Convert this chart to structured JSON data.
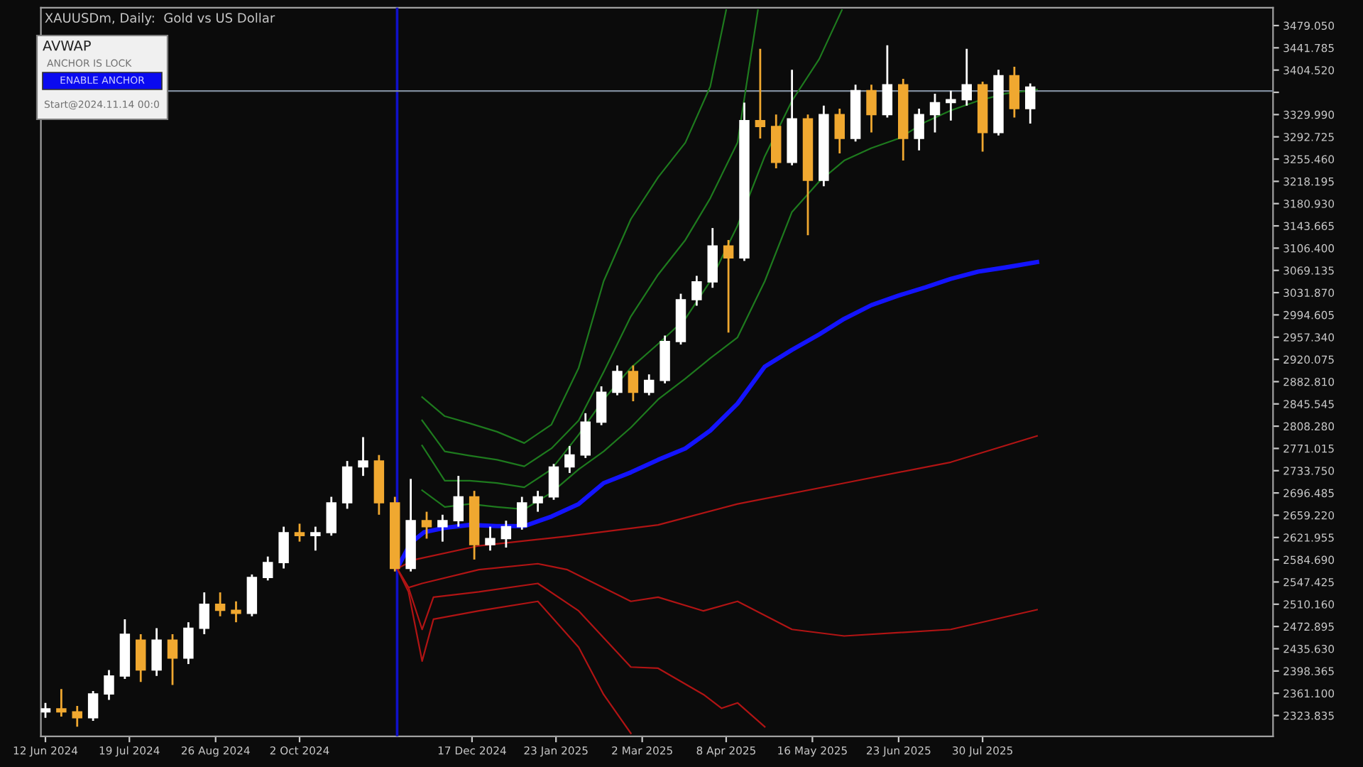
{
  "chart_data": {
    "type": "candlestick",
    "title": "XAUUSDm, Daily:  Gold vs US Dollar",
    "annotations": [
      "AVWAP",
      "ANCHOR IS LOCK",
      "ENABLE ANCHOR",
      "Start@2024.11.14 00:0"
    ],
    "x": [
      "2024-06-12",
      "2024-06-19",
      "2024-06-26",
      "2024-07-03",
      "2024-07-10",
      "2024-07-17",
      "2024-07-24",
      "2024-07-31",
      "2024-08-07",
      "2024-08-14",
      "2024-08-21",
      "2024-08-28",
      "2024-09-04",
      "2024-09-11",
      "2024-09-18",
      "2024-09-25",
      "2024-10-02",
      "2024-10-09",
      "2024-10-16",
      "2024-10-23",
      "2024-10-30",
      "2024-11-06",
      "2024-11-13",
      "2024-11-20",
      "2024-11-27",
      "2024-12-04",
      "2024-12-11",
      "2024-12-18",
      "2024-12-25",
      "2025-01-01",
      "2025-01-08",
      "2025-01-15",
      "2025-01-22",
      "2025-01-29",
      "2025-02-05",
      "2025-02-12",
      "2025-02-19",
      "2025-02-26",
      "2025-03-05",
      "2025-03-12",
      "2025-03-19",
      "2025-03-26",
      "2025-04-02",
      "2025-04-09",
      "2025-04-16",
      "2025-04-23",
      "2025-04-30",
      "2025-05-07",
      "2025-05-14",
      "2025-05-21",
      "2025-05-28",
      "2025-06-04",
      "2025-06-11",
      "2025-06-18",
      "2025-06-25",
      "2025-07-02",
      "2025-07-09",
      "2025-07-16",
      "2025-07-23",
      "2025-07-30",
      "2025-08-06",
      "2025-08-13",
      "2025-08-20"
    ],
    "ohlc": [
      [
        2330,
        2345,
        2320,
        2335
      ],
      [
        2335,
        2368,
        2322,
        2330
      ],
      [
        2330,
        2340,
        2305,
        2320
      ],
      [
        2320,
        2365,
        2315,
        2360
      ],
      [
        2360,
        2400,
        2350,
        2390
      ],
      [
        2390,
        2485,
        2385,
        2460
      ],
      [
        2450,
        2460,
        2380,
        2400
      ],
      [
        2400,
        2470,
        2390,
        2450
      ],
      [
        2450,
        2460,
        2375,
        2420
      ],
      [
        2420,
        2480,
        2410,
        2470
      ],
      [
        2470,
        2530,
        2460,
        2510
      ],
      [
        2510,
        2530,
        2490,
        2500
      ],
      [
        2500,
        2515,
        2480,
        2495
      ],
      [
        2495,
        2560,
        2490,
        2555
      ],
      [
        2555,
        2590,
        2550,
        2580
      ],
      [
        2580,
        2640,
        2570,
        2630
      ],
      [
        2630,
        2645,
        2615,
        2625
      ],
      [
        2625,
        2640,
        2600,
        2630
      ],
      [
        2630,
        2690,
        2625,
        2680
      ],
      [
        2680,
        2750,
        2670,
        2740
      ],
      [
        2740,
        2790,
        2725,
        2750
      ],
      [
        2750,
        2760,
        2660,
        2680
      ],
      [
        2680,
        2690,
        2565,
        2570
      ],
      [
        2570,
        2720,
        2565,
        2650
      ],
      [
        2650,
        2665,
        2620,
        2640
      ],
      [
        2640,
        2660,
        2615,
        2650
      ],
      [
        2650,
        2725,
        2640,
        2690
      ],
      [
        2690,
        2700,
        2585,
        2610
      ],
      [
        2610,
        2640,
        2600,
        2620
      ],
      [
        2620,
        2650,
        2605,
        2640
      ],
      [
        2640,
        2690,
        2635,
        2680
      ],
      [
        2680,
        2700,
        2665,
        2690
      ],
      [
        2690,
        2745,
        2685,
        2740
      ],
      [
        2740,
        2775,
        2730,
        2760
      ],
      [
        2760,
        2830,
        2755,
        2815
      ],
      [
        2815,
        2875,
        2810,
        2865
      ],
      [
        2865,
        2910,
        2860,
        2900
      ],
      [
        2900,
        2910,
        2850,
        2865
      ],
      [
        2865,
        2895,
        2860,
        2885
      ],
      [
        2885,
        2960,
        2880,
        2950
      ],
      [
        2950,
        3030,
        2945,
        3020
      ],
      [
        3020,
        3060,
        3010,
        3050
      ],
      [
        3050,
        3140,
        3040,
        3110
      ],
      [
        3110,
        3120,
        2965,
        3090
      ],
      [
        3090,
        3350,
        3085,
        3320
      ],
      [
        3320,
        3440,
        3290,
        3310
      ],
      [
        3310,
        3330,
        3240,
        3250
      ],
      [
        3250,
        3405,
        3245,
        3323
      ],
      [
        3323,
        3330,
        3128,
        3220
      ],
      [
        3220,
        3345,
        3210,
        3330
      ],
      [
        3330,
        3340,
        3265,
        3290
      ],
      [
        3290,
        3380,
        3285,
        3370
      ],
      [
        3370,
        3380,
        3300,
        3330
      ],
      [
        3330,
        3446,
        3325,
        3380
      ],
      [
        3380,
        3390,
        3253,
        3290
      ],
      [
        3290,
        3340,
        3270,
        3330
      ],
      [
        3330,
        3365,
        3300,
        3350
      ],
      [
        3350,
        3370,
        3320,
        3355
      ],
      [
        3355,
        3440,
        3345,
        3380
      ],
      [
        3380,
        3385,
        3268,
        3300
      ],
      [
        3300,
        3405,
        3295,
        3395
      ],
      [
        3395,
        3410,
        3325,
        3340
      ],
      [
        3340,
        3382,
        3315,
        3376
      ]
    ],
    "colors": [
      "#ffffff",
      "#f0a830",
      "#f0a830",
      "#ffffff",
      "#ffffff",
      "#ffffff",
      "#f0a830",
      "#ffffff",
      "#f0a830",
      "#ffffff",
      "#ffffff",
      "#f0a830",
      "#f0a830",
      "#ffffff",
      "#ffffff",
      "#ffffff",
      "#f0a830",
      "#ffffff",
      "#ffffff",
      "#ffffff",
      "#ffffff",
      "#f0a830",
      "#f0a830",
      "#ffffff",
      "#f0a830",
      "#ffffff",
      "#ffffff",
      "#f0a830",
      "#ffffff",
      "#ffffff",
      "#ffffff",
      "#ffffff",
      "#ffffff",
      "#ffffff",
      "#ffffff",
      "#ffffff",
      "#ffffff",
      "#f0a830",
      "#ffffff",
      "#ffffff",
      "#ffffff",
      "#ffffff",
      "#ffffff",
      "#f0a830",
      "#ffffff",
      "#f0a830",
      "#f0a830",
      "#ffffff",
      "#f0a830",
      "#ffffff",
      "#f0a830",
      "#ffffff",
      "#f0a830",
      "#ffffff",
      "#f0a830",
      "#ffffff",
      "#ffffff",
      "#ffffff",
      "#ffffff",
      "#f0a830",
      "#ffffff",
      "#f0a830",
      "#ffffff"
    ],
    "series": [
      {
        "type": "line",
        "color": "#1414ff",
        "x": [
          "2024-11-14",
          "2024-11-20",
          "2024-11-26",
          "2024-12-05",
          "2024-12-16",
          "2024-12-28",
          "2025-01-09",
          "2025-01-21",
          "2025-02-02",
          "2025-02-13",
          "2025-02-25",
          "2025-03-09",
          "2025-03-21",
          "2025-04-01",
          "2025-04-13",
          "2025-04-25",
          "2025-05-07",
          "2025-05-19",
          "2025-05-30",
          "2025-06-11",
          "2025-06-23",
          "2025-07-05",
          "2025-07-16",
          "2025-07-28",
          "2025-08-09",
          "2025-08-23"
        ],
        "values": [
          2570,
          2613,
          2631,
          2638,
          2643,
          2641,
          2641,
          2657,
          2678,
          2713,
          2731,
          2752,
          2771,
          2801,
          2846,
          2908,
          2936,
          2962,
          2988,
          3011,
          3027,
          3041,
          3055,
          3067,
          3074,
          3083
        ]
      },
      {
        "type": "line",
        "color": "#1e7a1e",
        "x": [
          "2024-11-25",
          "2024-12-05",
          "2024-12-16",
          "2024-12-28",
          "2025-01-09",
          "2025-01-21",
          "2025-02-02",
          "2025-02-13",
          "2025-02-25",
          "2025-03-09",
          "2025-03-21",
          "2025-04-01",
          "2025-04-13",
          "2025-04-25",
          "2025-05-07",
          "2025-05-19",
          "2025-05-30",
          "2025-06-11",
          "2025-06-23",
          "2025-07-05",
          "2025-07-16",
          "2025-07-28",
          "2025-08-09",
          "2025-08-23"
        ],
        "values": [
          2701,
          2673,
          2678,
          2673,
          2669,
          2697,
          2736,
          2766,
          2806,
          2853,
          2888,
          2922,
          2957,
          3051,
          3167,
          3218,
          3253,
          3274,
          3290,
          3318,
          3337,
          3353,
          3365,
          3372
        ]
      },
      {
        "type": "line",
        "color": "#1e7a1e",
        "x": [
          "2024-11-25",
          "2024-12-05",
          "2024-12-16",
          "2024-12-28",
          "2025-01-09",
          "2025-01-21",
          "2025-02-02",
          "2025-02-13",
          "2025-02-25",
          "2025-03-09",
          "2025-03-21",
          "2025-04-01",
          "2025-04-13",
          "2025-04-25",
          "2025-05-07",
          "2025-05-19",
          "2025-05-29"
        ],
        "values": [
          2776,
          2717,
          2717,
          2713,
          2706,
          2736,
          2794,
          2853,
          2906,
          2946,
          2988,
          3051,
          3144,
          3260,
          3353,
          3423,
          3505
        ]
      },
      {
        "type": "line",
        "color": "#1e7a1e",
        "x": [
          "2024-11-25",
          "2024-12-05",
          "2024-12-16",
          "2024-12-28",
          "2025-01-09",
          "2025-01-21",
          "2025-02-02",
          "2025-02-13",
          "2025-02-25",
          "2025-03-09",
          "2025-03-21",
          "2025-04-01",
          "2025-04-13",
          "2025-04-22"
        ],
        "values": [
          2818,
          2766,
          2759,
          2752,
          2741,
          2771,
          2818,
          2899,
          2992,
          3062,
          3120,
          3190,
          3283,
          3505
        ]
      },
      {
        "type": "line",
        "color": "#1e7a1e",
        "x": [
          "2024-11-25",
          "2024-12-05",
          "2024-12-16",
          "2024-12-28",
          "2025-01-09",
          "2025-01-21",
          "2025-02-02",
          "2025-02-13",
          "2025-02-25",
          "2025-03-09",
          "2025-03-21",
          "2025-04-01",
          "2025-04-08"
        ],
        "values": [
          2857,
          2825,
          2813,
          2799,
          2780,
          2811,
          2906,
          3051,
          3155,
          3225,
          3283,
          3377,
          3505
        ]
      },
      {
        "type": "line",
        "color": "#b01414",
        "x": [
          "2024-11-14",
          "2024-11-22",
          "2024-12-20",
          "2025-01-28",
          "2025-03-09",
          "2025-04-13",
          "2025-05-30",
          "2025-07-16",
          "2025-08-23"
        ],
        "values": [
          2570,
          2585,
          2608,
          2624,
          2643,
          2678,
          2713,
          2748,
          2792
        ]
      },
      {
        "type": "line",
        "color": "#b01414",
        "x": [
          "2024-11-14",
          "2024-11-19",
          "2024-11-25",
          "2024-12-20",
          "2025-01-15",
          "2025-01-28",
          "2025-02-25",
          "2025-03-09",
          "2025-03-29",
          "2025-04-13",
          "2025-05-07",
          "2025-05-30",
          "2025-07-16",
          "2025-08-23"
        ],
        "values": [
          2570,
          2538,
          2545,
          2568,
          2578,
          2568,
          2515,
          2522,
          2499,
          2515,
          2468,
          2457,
          2468,
          2501
        ]
      },
      {
        "type": "line",
        "color": "#b01414",
        "x": [
          "2024-11-14",
          "2024-11-19",
          "2024-11-25",
          "2024-11-30",
          "2024-12-20",
          "2025-01-15",
          "2025-02-02",
          "2025-02-25",
          "2025-03-09",
          "2025-03-29",
          "2025-04-06",
          "2025-04-13",
          "2025-04-25"
        ],
        "values": [
          2570,
          2538,
          2468,
          2522,
          2531,
          2545,
          2499,
          2405,
          2403,
          2359,
          2336,
          2345,
          2305
        ]
      },
      {
        "type": "line",
        "color": "#b01414",
        "x": [
          "2024-11-14",
          "2024-11-19",
          "2024-11-25",
          "2024-11-30",
          "2024-12-20",
          "2025-01-15",
          "2025-02-02",
          "2025-02-13",
          "2025-02-25"
        ],
        "values": [
          2570,
          2531,
          2415,
          2485,
          2499,
          2515,
          2438,
          2359,
          2294
        ]
      }
    ],
    "ref_lines": [
      {
        "axis": "x",
        "value": "2024-11-14",
        "color": "#1010c8"
      },
      {
        "axis": "y",
        "value": 3369.6,
        "color": "#7f8c9c"
      }
    ],
    "xlim": [
      "2024-06-10",
      "2025-12-05"
    ],
    "xticks": [
      {
        "value": "2024-06-12",
        "label": "12 Jun 2024"
      },
      {
        "value": "2024-07-19",
        "label": "19 Jul 2024"
      },
      {
        "value": "2024-08-26",
        "label": "26 Aug 2024"
      },
      {
        "value": "2024-10-02",
        "label": "2 Oct 2024"
      },
      {
        "value": "2024-12-17",
        "label": "17 Dec 2024"
      },
      {
        "value": "2025-01-23",
        "label": "23 Jan 2025"
      },
      {
        "value": "2025-03-02",
        "label": "2 Mar 2025"
      },
      {
        "value": "2025-04-08",
        "label": "8 Apr 2025"
      },
      {
        "value": "2025-05-16",
        "label": "16 May 2025"
      },
      {
        "value": "2025-06-23",
        "label": "23 Jun 2025"
      },
      {
        "value": "2025-07-30",
        "label": "30 Jul 2025"
      }
    ],
    "ylim": [
      2289,
      3509
    ],
    "yticks": [
      {
        "value": 2323.835,
        "label": "2323.835"
      },
      {
        "value": 2361.1,
        "label": "2361.100"
      },
      {
        "value": 2398.365,
        "label": "2398.365"
      },
      {
        "value": 2435.63,
        "label": "2435.630"
      },
      {
        "value": 2472.895,
        "label": "2472.895"
      },
      {
        "value": 2510.16,
        "label": "2510.160"
      },
      {
        "value": 2547.425,
        "label": "2547.425"
      },
      {
        "value": 2584.69,
        "label": "2584.690"
      },
      {
        "value": 2621.955,
        "label": "2621.955"
      },
      {
        "value": 2659.22,
        "label": "2659.220"
      },
      {
        "value": 2696.485,
        "label": "2696.485"
      },
      {
        "value": 2733.75,
        "label": "2733.750"
      },
      {
        "value": 2771.015,
        "label": "2771.015"
      },
      {
        "value": 2808.28,
        "label": "2808.280"
      },
      {
        "value": 2845.545,
        "label": "2845.545"
      },
      {
        "value": 2882.81,
        "label": "2882.810"
      },
      {
        "value": 2920.075,
        "label": "2920.075"
      },
      {
        "value": 2957.34,
        "label": "2957.340"
      },
      {
        "value": 2994.605,
        "label": "2994.605"
      },
      {
        "value": 3031.87,
        "label": "3031.870"
      },
      {
        "value": 3069.135,
        "label": "3069.135"
      },
      {
        "value": 3106.4,
        "label": "3106.400"
      },
      {
        "value": 3143.665,
        "label": "3143.665"
      },
      {
        "value": 3180.93,
        "label": "3180.930"
      },
      {
        "value": 3218.195,
        "label": "3218.195"
      },
      {
        "value": 3255.46,
        "label": "3255.460"
      },
      {
        "value": 3292.725,
        "label": "3292.725"
      },
      {
        "value": 3329.99,
        "label": "3329.990"
      },
      {
        "value": 3367.255,
        "label": null
      },
      {
        "value": 3404.52,
        "label": "3404.520"
      },
      {
        "value": 3441.785,
        "label": "3441.785"
      },
      {
        "value": 3479.05,
        "label": "3479.050"
      }
    ]
  }
}
